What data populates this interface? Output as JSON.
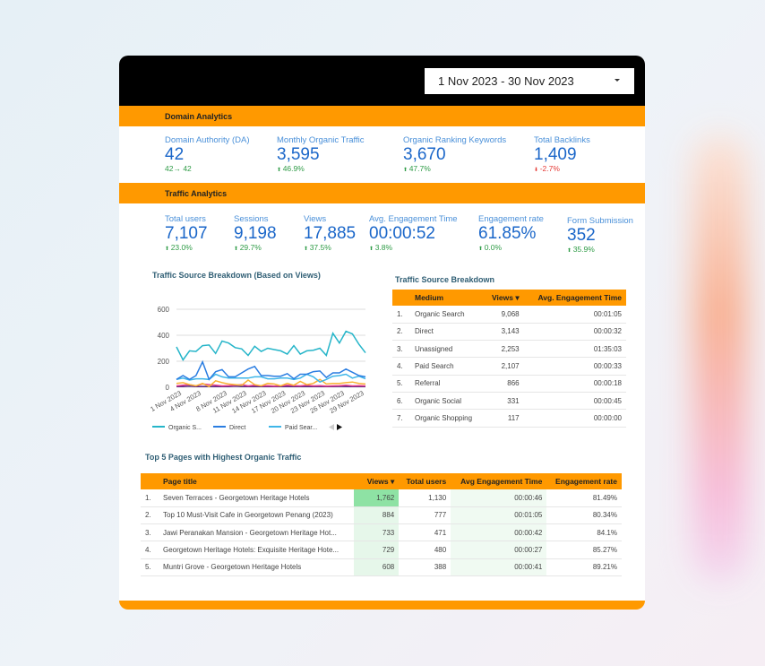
{
  "date_range": "1 Nov 2023 - 30 Nov 2023",
  "domain_section": {
    "title": "Domain Analytics",
    "kpis": [
      {
        "label": "Domain Authority (DA)",
        "value": "42",
        "delta": "42→ 42",
        "trend": "flat"
      },
      {
        "label": "Monthly Organic Traffic",
        "value": "3,595",
        "delta": "46.9%",
        "trend": "up"
      },
      {
        "label": "Organic Ranking Keywords",
        "value": "3,670",
        "delta": "47.7%",
        "trend": "up"
      },
      {
        "label": "Total Backlinks",
        "value": "1,409",
        "delta": "-2.7%",
        "trend": "down"
      }
    ]
  },
  "traffic_section": {
    "title": "Traffic Analytics",
    "kpis": [
      {
        "label": "Total users",
        "value": "7,107",
        "delta": "23.0%"
      },
      {
        "label": "Sessions",
        "value": "9,198",
        "delta": "29.7%"
      },
      {
        "label": "Views",
        "value": "17,885",
        "delta": "37.5%"
      },
      {
        "label": "Avg. Engagement Time",
        "value": "00:00:52",
        "delta": "3.8%"
      },
      {
        "label": "Engagement rate",
        "value": "61.85%",
        "delta": "0.0%"
      },
      {
        "label": "Form Submission",
        "value": "352",
        "delta": "35.9%"
      }
    ]
  },
  "chart_data": {
    "type": "line",
    "title": "Traffic Source Breakdown (Based on Views)",
    "ylim": [
      0,
      600
    ],
    "yticks": [
      "0",
      "200",
      "400",
      "600"
    ],
    "xticks": [
      "1 Nov 2023",
      "4 Nov 2023",
      "8 Nov 2023",
      "11 Nov 2023",
      "14 Nov 2023",
      "17 Nov 2023",
      "20 Nov 2023",
      "23 Nov 2023",
      "26 Nov 2023",
      "29 Nov 2023"
    ],
    "legend": [
      "Organic S...",
      "Direct",
      "Paid Sear..."
    ],
    "series": [
      {
        "name": "Organic Search",
        "color": "#26b5c9",
        "values": [
          310,
          210,
          280,
          275,
          320,
          325,
          260,
          355,
          340,
          305,
          295,
          245,
          315,
          275,
          300,
          290,
          280,
          255,
          320,
          255,
          280,
          285,
          300,
          245,
          415,
          340,
          430,
          410,
          330,
          265
        ]
      },
      {
        "name": "Direct",
        "color": "#2a7de1",
        "values": [
          60,
          90,
          60,
          90,
          195,
          60,
          120,
          135,
          80,
          80,
          110,
          140,
          160,
          90,
          90,
          85,
          85,
          105,
          65,
          100,
          100,
          120,
          125,
          75,
          110,
          110,
          140,
          115,
          90,
          80
        ]
      },
      {
        "name": "Paid Search",
        "color": "#3fb6e8",
        "values": [
          60,
          70,
          55,
          65,
          65,
          60,
          100,
          80,
          70,
          70,
          70,
          70,
          80,
          80,
          65,
          65,
          70,
          70,
          60,
          70,
          100,
          80,
          40,
          60,
          85,
          90,
          100,
          70,
          85,
          65
        ]
      },
      {
        "name": "Unassigned",
        "color": "#f9b233",
        "values": [
          30,
          35,
          20,
          10,
          30,
          5,
          50,
          35,
          25,
          20,
          15,
          55,
          20,
          10,
          30,
          25,
          10,
          30,
          15,
          45,
          20,
          30,
          60,
          25,
          30,
          30,
          35,
          40,
          30,
          25
        ]
      },
      {
        "name": "Referral",
        "color": "#e83e8c",
        "values": [
          10,
          15,
          20,
          10,
          25,
          20,
          15,
          10,
          12,
          15,
          20,
          10,
          15,
          10,
          12,
          8,
          10,
          15,
          12,
          10,
          15,
          10,
          12,
          8,
          10,
          12,
          15,
          10,
          12,
          10
        ]
      },
      {
        "name": "Organic Social",
        "color": "#5b2a86",
        "values": [
          5,
          5,
          8,
          5,
          5,
          6,
          5,
          5,
          5,
          8,
          5,
          5,
          6,
          5,
          5,
          5,
          6,
          5,
          5,
          5,
          5,
          6,
          5,
          5,
          5,
          6,
          5,
          5,
          5,
          5
        ]
      }
    ]
  },
  "source_table": {
    "title": "Traffic Source Breakdown",
    "headers": [
      "Medium",
      "Views ▾",
      "Avg. Engagement Time"
    ],
    "rows": [
      [
        "1.",
        "Organic Search",
        "9,068",
        "00:01:05"
      ],
      [
        "2.",
        "Direct",
        "3,143",
        "00:00:32"
      ],
      [
        "3.",
        "Unassigned",
        "2,253",
        "01:35:03"
      ],
      [
        "4.",
        "Paid Search",
        "2,107",
        "00:00:33"
      ],
      [
        "5.",
        "Referral",
        "866",
        "00:00:18"
      ],
      [
        "6.",
        "Organic Social",
        "331",
        "00:00:45"
      ],
      [
        "7.",
        "Organic Shopping",
        "117",
        "00:00:00"
      ]
    ]
  },
  "pages_table": {
    "title": "Top 5 Pages with Highest Organic Traffic",
    "headers": [
      "Page title",
      "Views ▾",
      "Total users",
      "Avg Engagement Time",
      "Engagement rate"
    ],
    "rows": [
      [
        "1.",
        "Seven Terraces - Georgetown Heritage Hotels",
        "1,762",
        "1,130",
        "00:00:46",
        "81.49%"
      ],
      [
        "2.",
        "Top 10 Must-Visit Cafe in Georgetown Penang (2023)",
        "884",
        "777",
        "00:01:05",
        "80.34%"
      ],
      [
        "3.",
        "Jawi Peranakan Mansion - Georgetown Heritage Hot...",
        "733",
        "471",
        "00:00:42",
        "84.1%"
      ],
      [
        "4.",
        "Georgetown Heritage Hotels: Exquisite Heritage Hote...",
        "729",
        "480",
        "00:00:27",
        "85.27%"
      ],
      [
        "5.",
        "Muntri Grove - Georgetown Heritage Hotels",
        "608",
        "388",
        "00:00:41",
        "89.21%"
      ]
    ]
  }
}
